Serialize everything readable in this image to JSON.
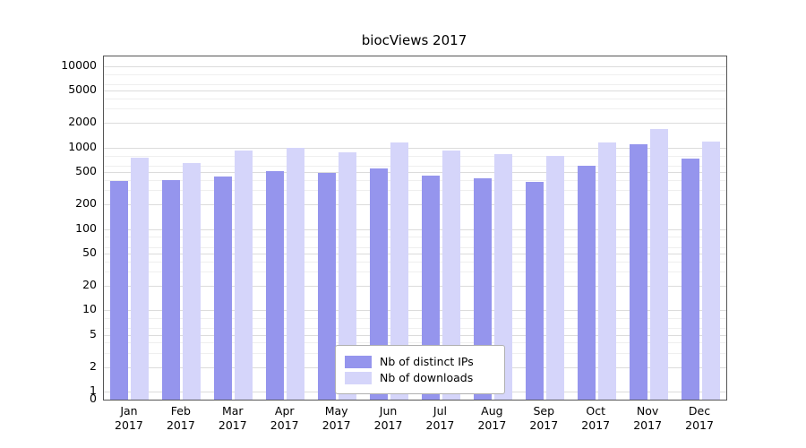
{
  "chart_data": {
    "type": "bar",
    "title": "biocViews 2017",
    "categories": [
      "Jan",
      "Feb",
      "Mar",
      "Apr",
      "May",
      "Jun",
      "Jul",
      "Aug",
      "Sep",
      "Oct",
      "Nov",
      "Dec"
    ],
    "year": "2017",
    "series": [
      {
        "name": "Nb of distinct IPs",
        "color": "#9595ed",
        "values": [
          390,
          400,
          440,
          520,
          490,
          550,
          450,
          420,
          380,
          600,
          1100,
          740
        ]
      },
      {
        "name": "Nb of downloads",
        "color": "#d5d5fa",
        "values": [
          750,
          650,
          930,
          1000,
          880,
          1150,
          920,
          830,
          800,
          1150,
          1700,
          1200
        ]
      }
    ],
    "yscale": "log",
    "yticks": [
      10000,
      5000,
      2000,
      1000,
      500,
      200,
      100,
      50,
      20,
      10,
      5,
      2,
      1,
      0
    ],
    "ylim": [
      0,
      10000
    ],
    "grid": true,
    "legend_position": "bottom-center-inside",
    "xlabel": "",
    "ylabel": ""
  }
}
